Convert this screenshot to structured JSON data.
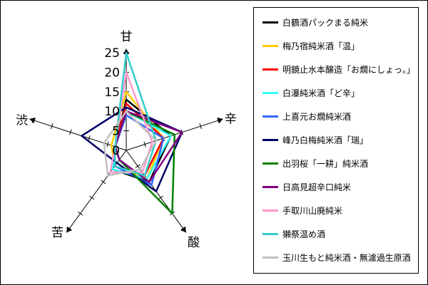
{
  "chart_data": {
    "type": "radar",
    "axes": [
      "甘",
      "辛",
      "酸",
      "苦",
      "渋"
    ],
    "rmax": 25,
    "ticks": [
      0,
      5,
      10,
      15,
      20,
      25
    ],
    "tick_labels": [
      "0",
      "5",
      "10",
      "15",
      "20",
      "25"
    ],
    "legend_position": "right",
    "series": [
      {
        "name": "白鶴酒パックまる純米",
        "color": "#000000",
        "values": [
          13,
          12,
          10,
          6,
          3
        ]
      },
      {
        "name": "梅乃宿純米酒「温」",
        "color": "#ffcc00",
        "values": [
          15,
          10,
          9,
          5,
          4
        ]
      },
      {
        "name": "明鏡止水本醸造「お燗にしょっ。」",
        "color": "#ff0000",
        "values": [
          12,
          10,
          8,
          5,
          3
        ]
      },
      {
        "name": "白瀑純米酒「ど辛」",
        "color": "#33ffff",
        "values": [
          10,
          12,
          9,
          6,
          3
        ]
      },
      {
        "name": "上喜元お燗純米酒",
        "color": "#3366ff",
        "values": [
          9,
          10,
          11,
          5,
          3
        ]
      },
      {
        "name": "峰乃白梅純米酒「瑞」",
        "color": "#000066",
        "values": [
          11,
          15,
          13,
          4,
          12
        ]
      },
      {
        "name": "出羽桜「一耕」純米酒",
        "color": "#008000",
        "values": [
          10,
          13,
          20,
          3,
          3
        ]
      },
      {
        "name": "日高見超辛口純米",
        "color": "#800080",
        "values": [
          10,
          15,
          10,
          3,
          3
        ]
      },
      {
        "name": "手取川山廃純米",
        "color": "#ff99cc",
        "values": [
          20,
          7,
          7,
          7,
          3
        ]
      },
      {
        "name": "獺祭温め酒",
        "color": "#33cccc",
        "values": [
          25,
          8,
          8,
          5,
          3
        ]
      },
      {
        "name": "玉川生もと純米酒・無濾過生原酒",
        "color": "#c0c0c0",
        "values": [
          10,
          8,
          6,
          8,
          6
        ]
      }
    ]
  }
}
